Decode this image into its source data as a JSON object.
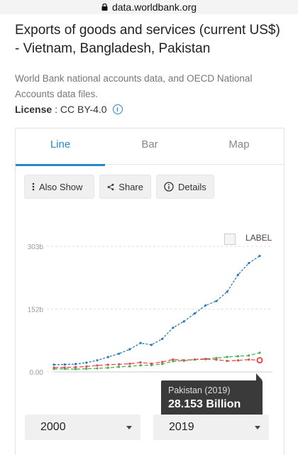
{
  "browser": {
    "url": "data.worldbank.org"
  },
  "page": {
    "title": "Exports of goods and services (current US$) - Vietnam, Bangladesh, Pakistan",
    "source": "World Bank national accounts data, and OECD National Accounts data files.",
    "license_label": "License",
    "license_value": ": CC BY-4.0"
  },
  "tabs": [
    {
      "label": "Line",
      "active": true
    },
    {
      "label": "Bar",
      "active": false
    },
    {
      "label": "Map",
      "active": false
    }
  ],
  "toolbar": {
    "also_show": "Also Show",
    "share": "Share",
    "details": "Details"
  },
  "legend_label": "LABEL",
  "tooltip": {
    "title": "Pakistan (2019)",
    "value": "28.153 Billion"
  },
  "range": {
    "start": "2000",
    "end": "2019"
  },
  "colors": {
    "accent": "#2a86c9",
    "vietnam": "#2c7bb6",
    "bangladesh": "#4caf50",
    "pakistan": "#e64c4c"
  },
  "chart_data": {
    "type": "line",
    "x": [
      2000,
      2001,
      2002,
      2003,
      2004,
      2005,
      2006,
      2007,
      2008,
      2009,
      2010,
      2011,
      2012,
      2013,
      2014,
      2015,
      2016,
      2017,
      2018,
      2019
    ],
    "yticks": [
      "303b",
      "152b",
      "0.00"
    ],
    "ylim": [
      0,
      303
    ],
    "series": [
      {
        "values": [
          17.5,
          18.0,
          19.0,
          22.4,
          28.1,
          35.9,
          44.0,
          54.6,
          69.7,
          65.3,
          79.7,
          106.7,
          121.8,
          141.0,
          160.4,
          170.9,
          193.5,
          234.3,
          262.6,
          279.7
        ]
      },
      {
        "values": [
          7.2,
          7.4,
          6.8,
          7.7,
          8.7,
          10.0,
          12.3,
          13.5,
          16.0,
          16.4,
          19.2,
          25.9,
          27.0,
          30.1,
          31.7,
          33.7,
          36.1,
          37.9,
          39.6,
          46.2
        ]
      },
      {
        "values": [
          10.4,
          10.8,
          11.5,
          13.3,
          15.6,
          17.4,
          18.5,
          19.8,
          22.9,
          20.2,
          24.1,
          30.1,
          28.3,
          29.7,
          30.8,
          29.8,
          26.5,
          27.8,
          29.8,
          28.2
        ]
      }
    ]
  }
}
